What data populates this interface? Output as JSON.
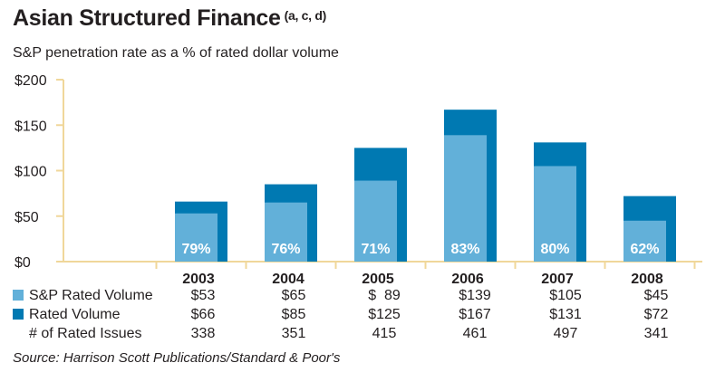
{
  "header": {
    "title": "Asian Structured Finance",
    "title_superscript": "(a, c, d)",
    "subtitle": "S&P penetration rate as a % of rated dollar volume"
  },
  "colors": {
    "sp_rated_volume": "#62b0d9",
    "rated_volume": "#0079b2",
    "axis": "#f0d79a"
  },
  "chart_data": {
    "type": "bar",
    "categories": [
      "2003",
      "2004",
      "2005",
      "2006",
      "2007",
      "2008"
    ],
    "series": [
      {
        "name": "S&P Rated Volume",
        "values": [
          53,
          65,
          89,
          139,
          105,
          45
        ]
      },
      {
        "name": "Rated Volume",
        "values": [
          66,
          85,
          125,
          167,
          131,
          72
        ]
      }
    ],
    "bar_labels": [
      "79%",
      "76%",
      "71%",
      "83%",
      "80%",
      "62%"
    ],
    "ylim": [
      0,
      200
    ],
    "yticks": [
      0,
      50,
      100,
      150,
      200
    ],
    "ytick_labels": [
      "$0",
      "$50",
      "$100",
      "$150",
      "$200"
    ],
    "grid": false
  },
  "table": {
    "rows": [
      {
        "label": "S&P Rated Volume",
        "swatch": "sp_rated_volume",
        "values": [
          "$53",
          "$65",
          "$  89",
          "$139",
          "$105",
          "$45"
        ]
      },
      {
        "label": "Rated Volume",
        "swatch": "rated_volume",
        "values": [
          "$66",
          "$85",
          "$125",
          "$167",
          "$131",
          "$72"
        ]
      },
      {
        "label": "# of Rated Issues",
        "swatch": null,
        "values": [
          "338",
          "351",
          "415",
          "461",
          "497",
          "341"
        ]
      }
    ]
  },
  "source": "Source: Harrison Scott Publications/Standard & Poor's"
}
